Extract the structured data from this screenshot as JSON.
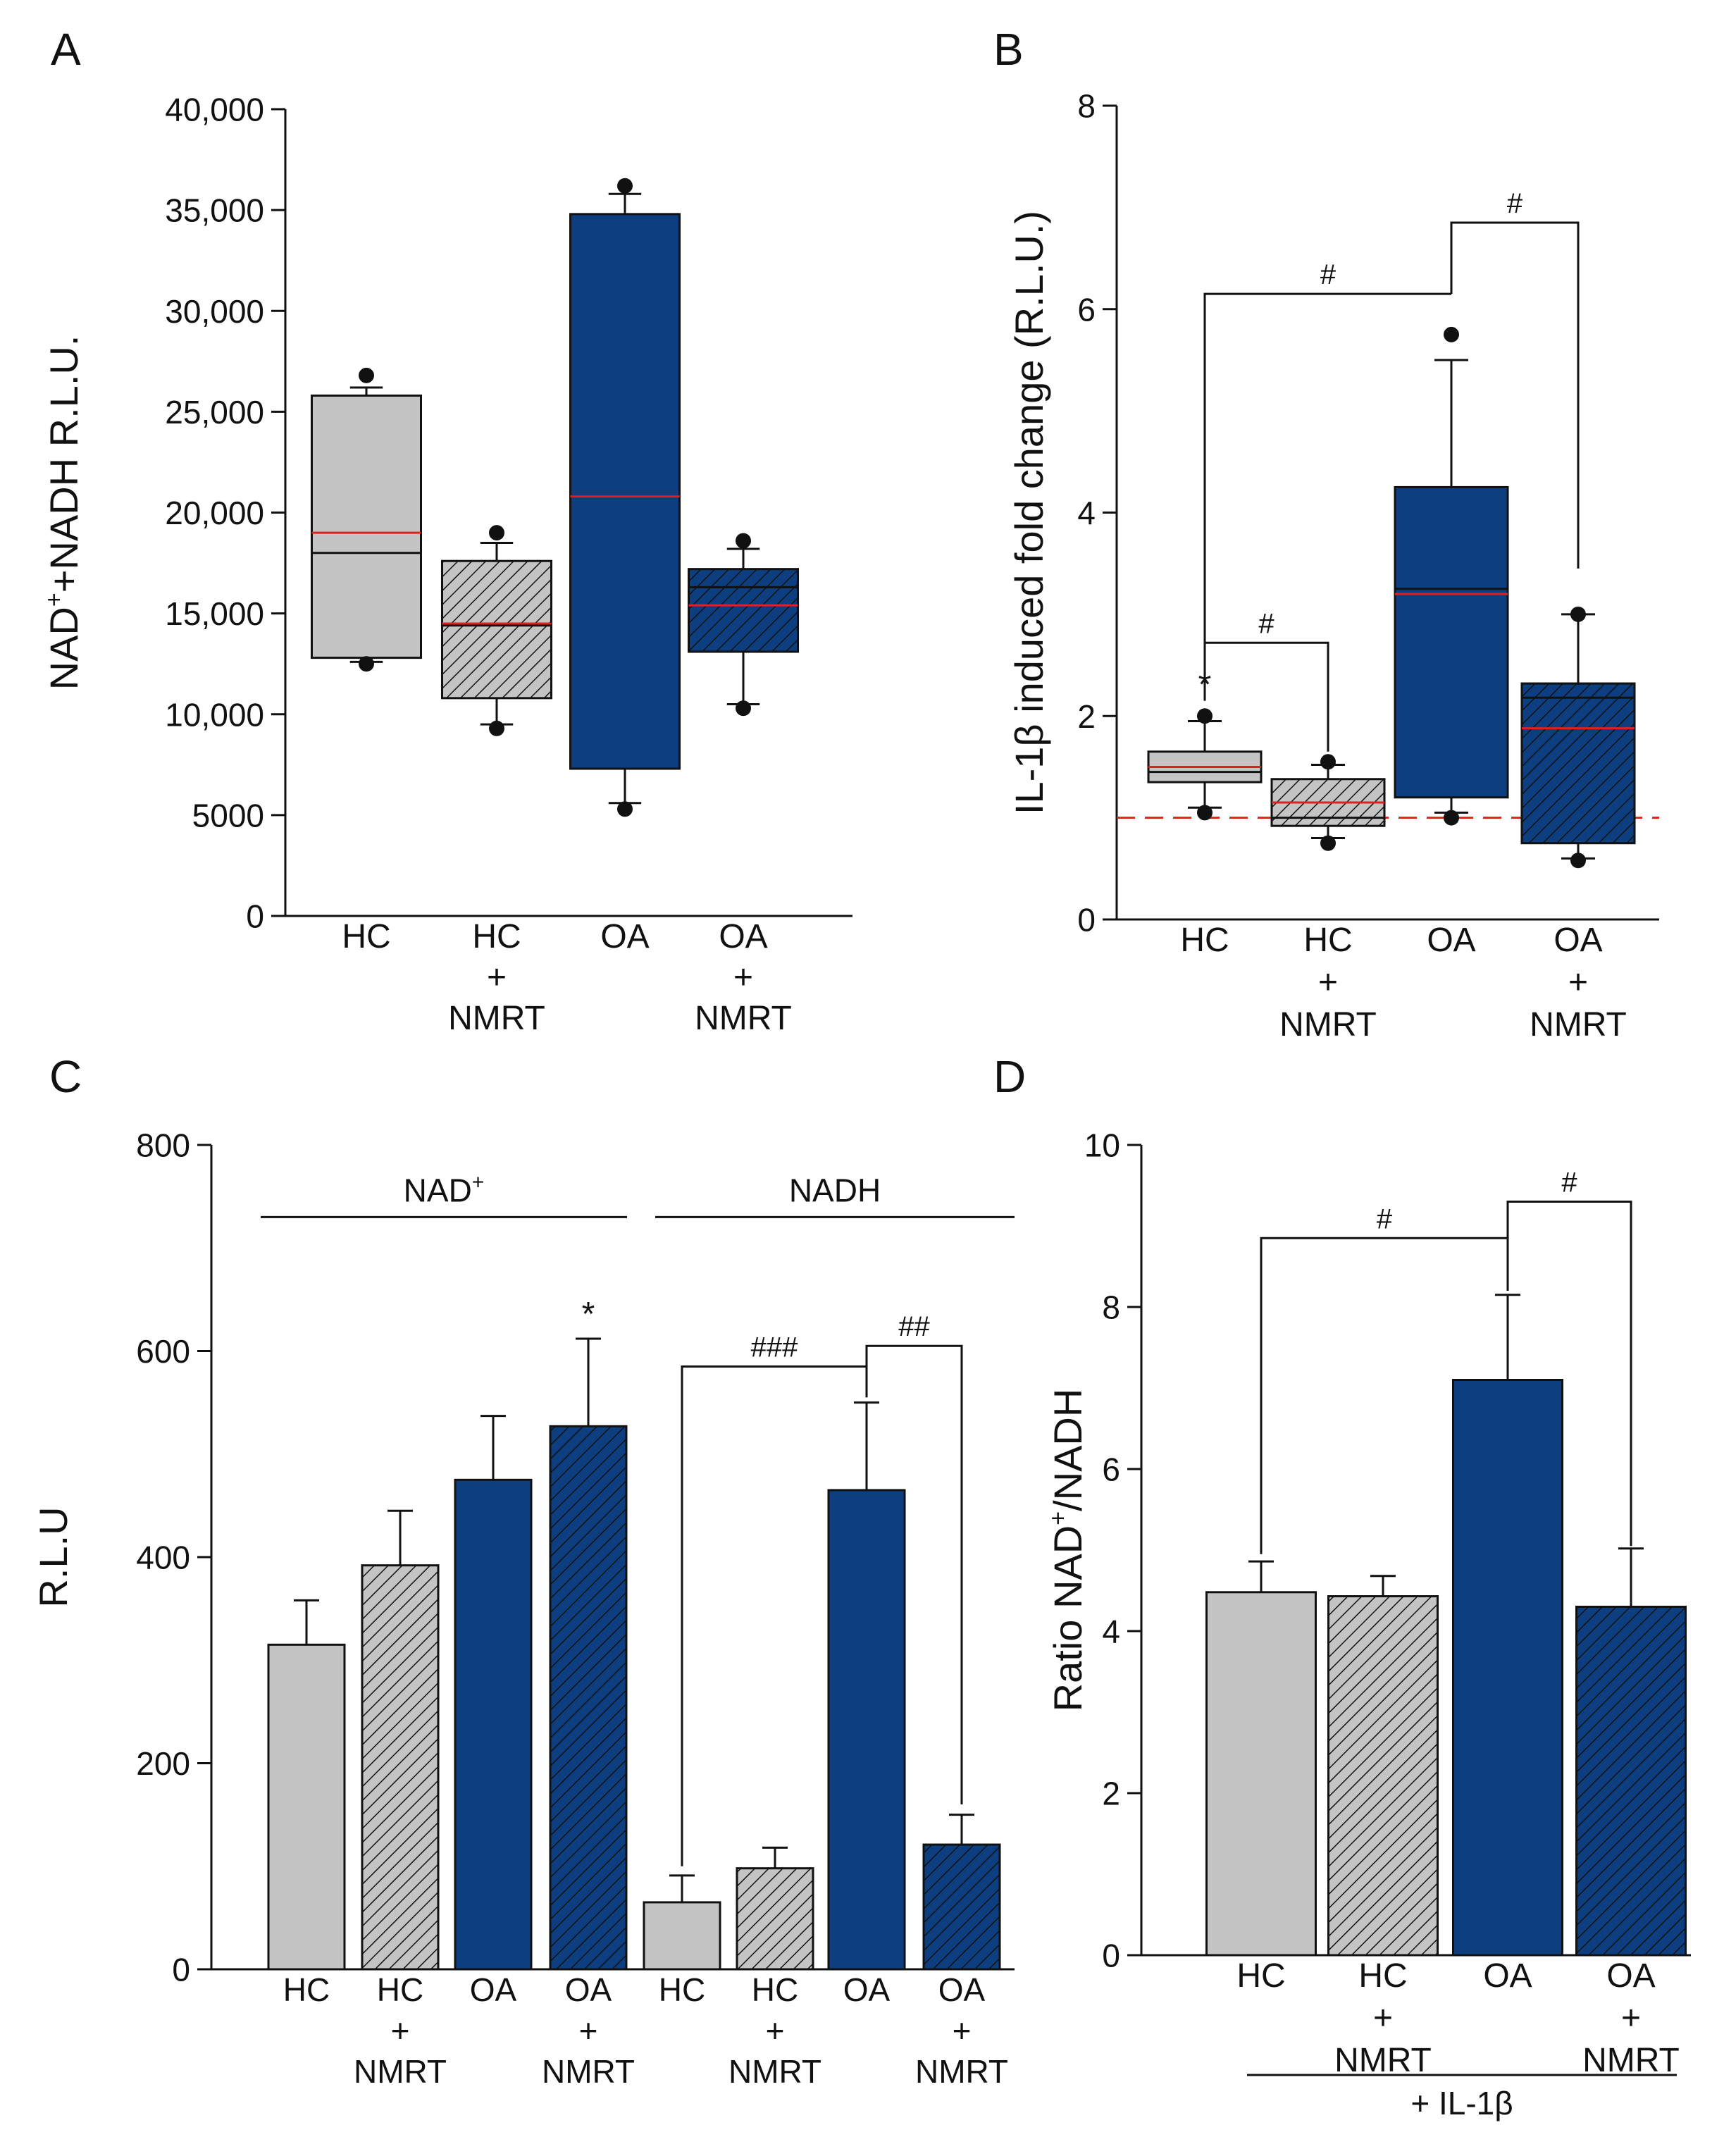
{
  "colors": {
    "hc": "#c4c4c4",
    "oa": "#0d3f80",
    "mean_line": "#e0201c",
    "stroke": "#111111",
    "baseline": "#e0201c"
  },
  "chart_data": [
    {
      "id": "A",
      "panel_label": "A",
      "type": "box",
      "ylabel_parts": [
        "NAD",
        "+",
        "+NADH R.L.U."
      ],
      "ylim": [
        0,
        40000
      ],
      "ticks": [
        0,
        5000,
        10000,
        15000,
        20000,
        25000,
        30000,
        35000,
        40000
      ],
      "tick_labels": [
        "0",
        "5000",
        "10,000",
        "15,000",
        "20,000",
        "25,000",
        "30,000",
        "35,000",
        "40,000"
      ],
      "categories": [
        {
          "label_lines": [
            "HC"
          ],
          "fill": "hc",
          "hatched": false,
          "median": 18000,
          "mean": 19000,
          "q1": 12800,
          "q3": 25800,
          "whisker_low": 12600,
          "whisker_high": 26200,
          "outliers": [
            26800,
            12500
          ]
        },
        {
          "label_lines": [
            "HC",
            "+",
            "NMRT"
          ],
          "fill": "hc",
          "hatched": true,
          "median": 14400,
          "mean": 14500,
          "q1": 10800,
          "q3": 17600,
          "whisker_low": 9500,
          "whisker_high": 18500,
          "outliers": [
            19000,
            9300
          ]
        },
        {
          "label_lines": [
            "OA"
          ],
          "fill": "oa",
          "hatched": false,
          "median": 20800,
          "mean": 20800,
          "q1": 7300,
          "q3": 34800,
          "whisker_low": 5600,
          "whisker_high": 35800,
          "outliers": [
            36200,
            5300
          ]
        },
        {
          "label_lines": [
            "OA",
            "+",
            "NMRT"
          ],
          "fill": "oa",
          "hatched": true,
          "median": 16300,
          "mean": 15400,
          "q1": 13100,
          "q3": 17200,
          "whisker_low": 10500,
          "whisker_high": 18200,
          "outliers": [
            18600,
            10300
          ]
        }
      ],
      "annotations": []
    },
    {
      "id": "B",
      "panel_label": "B",
      "type": "box",
      "ylabel": "IL-1β induced fold change (R.L.U.)",
      "ylim": [
        0,
        8
      ],
      "ticks": [
        0,
        2,
        4,
        6,
        8
      ],
      "tick_labels": [
        "0",
        "2",
        "4",
        "6",
        "8"
      ],
      "baseline": 1,
      "categories": [
        {
          "label_lines": [
            "HC"
          ],
          "fill": "hc",
          "hatched": false,
          "median": 1.45,
          "mean": 1.5,
          "q1": 1.35,
          "q3": 1.65,
          "whisker_low": 1.1,
          "whisker_high": 1.95,
          "outliers": [
            2.0,
            1.05
          ]
        },
        {
          "label_lines": [
            "HC",
            "+",
            "NMRT"
          ],
          "fill": "hc",
          "hatched": true,
          "median": 1.0,
          "mean": 1.15,
          "q1": 0.92,
          "q3": 1.38,
          "whisker_low": 0.8,
          "whisker_high": 1.52,
          "outliers": [
            1.55,
            0.75
          ]
        },
        {
          "label_lines": [
            "OA"
          ],
          "fill": "oa",
          "hatched": false,
          "median": 3.25,
          "mean": 3.2,
          "q1": 1.2,
          "q3": 4.25,
          "whisker_low": 1.05,
          "whisker_high": 5.5,
          "outliers": [
            5.75,
            1.0
          ]
        },
        {
          "label_lines": [
            "OA",
            "+",
            "NMRT"
          ],
          "fill": "oa",
          "hatched": true,
          "median": 2.18,
          "mean": 1.88,
          "q1": 0.75,
          "q3": 2.32,
          "whisker_low": 0.6,
          "whisker_high": 3.0,
          "outliers": [
            3.0,
            0.58
          ]
        }
      ],
      "annotations": [
        {
          "kind": "star",
          "cat": 0,
          "value": 2.2,
          "text": "*"
        },
        {
          "kind": "bracket",
          "from": 0,
          "to": 2,
          "from_y": 2.15,
          "to_y": 6.15,
          "top": 6.15,
          "text": "#"
        },
        {
          "kind": "bracket",
          "from": 2,
          "to": 3,
          "from_y": 6.15,
          "to_y": 3.45,
          "top": 6.85,
          "text": "#"
        },
        {
          "kind": "bracket",
          "from": 0,
          "to": 1,
          "from_y": 2.25,
          "to_y": 1.65,
          "top": 2.72,
          "text": "#"
        }
      ]
    },
    {
      "id": "C",
      "panel_label": "C",
      "type": "bar",
      "ylabel": "R.L.U",
      "ylim": [
        0,
        800
      ],
      "ticks": [
        0,
        200,
        400,
        600,
        800
      ],
      "tick_labels": [
        "0",
        "200",
        "400",
        "600",
        "800"
      ],
      "groups": [
        {
          "label_parts": [
            "NAD",
            "+"
          ],
          "from": 0,
          "to": 3,
          "value": 730
        },
        {
          "label_parts": [
            "NADH"
          ],
          "from": 4,
          "to": 7,
          "value": 730
        }
      ],
      "categories": [
        {
          "label_lines": [
            "HC"
          ],
          "fill": "hc",
          "hatched": false,
          "value": 315,
          "error": 43
        },
        {
          "label_lines": [
            "HC",
            "+",
            "NMRT"
          ],
          "fill": "hc",
          "hatched": true,
          "value": 392,
          "error": 53
        },
        {
          "label_lines": [
            "OA"
          ],
          "fill": "oa",
          "hatched": false,
          "value": 475,
          "error": 62
        },
        {
          "label_lines": [
            "OA",
            "+",
            "NMRT"
          ],
          "fill": "oa",
          "hatched": true,
          "value": 527,
          "error": 85
        },
        {
          "label_lines": [
            "HC"
          ],
          "fill": "hc",
          "hatched": false,
          "value": 65,
          "error": 26
        },
        {
          "label_lines": [
            "HC",
            "+",
            "NMRT"
          ],
          "fill": "hc",
          "hatched": true,
          "value": 98,
          "error": 20
        },
        {
          "label_lines": [
            "OA"
          ],
          "fill": "oa",
          "hatched": false,
          "value": 465,
          "error": 85
        },
        {
          "label_lines": [
            "OA",
            "+",
            "NMRT"
          ],
          "fill": "oa",
          "hatched": true,
          "value": 121,
          "error": 29
        }
      ],
      "annotations": [
        {
          "kind": "star",
          "cat": 3,
          "value": 625,
          "text": "*"
        },
        {
          "kind": "bracket",
          "from": 4,
          "to": 6,
          "from_y": 100,
          "to_y": 555,
          "top": 585,
          "text": "###"
        },
        {
          "kind": "bracket",
          "from": 6,
          "to": 7,
          "from_y": 585,
          "to_y": 160,
          "top": 605,
          "text": "##"
        }
      ]
    },
    {
      "id": "D",
      "panel_label": "D",
      "type": "bar",
      "ylabel_parts": [
        "Ratio NAD",
        "+",
        "/NADH"
      ],
      "ylim": [
        0,
        10
      ],
      "ticks": [
        0,
        2,
        4,
        6,
        8,
        10
      ],
      "tick_labels": [
        "0",
        "2",
        "4",
        "6",
        "8",
        "10"
      ],
      "footer_label": "+ IL-1β",
      "categories": [
        {
          "label_lines": [
            "HC"
          ],
          "fill": "hc",
          "hatched": false,
          "value": 4.48,
          "error": 0.38
        },
        {
          "label_lines": [
            "HC",
            "+",
            "NMRT"
          ],
          "fill": "hc",
          "hatched": true,
          "value": 4.43,
          "error": 0.25
        },
        {
          "label_lines": [
            "OA"
          ],
          "fill": "oa",
          "hatched": false,
          "value": 7.1,
          "error": 1.05
        },
        {
          "label_lines": [
            "OA",
            "+",
            "NMRT"
          ],
          "fill": "oa",
          "hatched": true,
          "value": 4.3,
          "error": 0.72
        }
      ],
      "annotations": [
        {
          "kind": "bracket",
          "from": 0,
          "to": 2,
          "from_y": 4.95,
          "to_y": 8.2,
          "top": 8.85,
          "text": "#"
        },
        {
          "kind": "bracket",
          "from": 2,
          "to": 3,
          "from_y": 8.6,
          "to_y": 5.05,
          "top": 9.3,
          "text": "#"
        }
      ]
    }
  ]
}
